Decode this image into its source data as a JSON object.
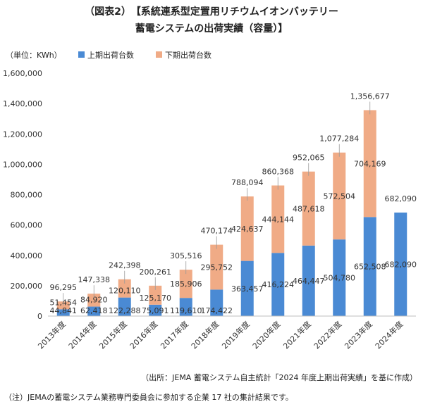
{
  "title": {
    "line1": "（図表2）　【系統連系型定置用リチウムイオンバッテリー",
    "line2": "蓄電システムの出荷実績（容量）】"
  },
  "footer": {
    "source": "（出所：JEMA 蓄電システム自主統計「2024 年度上期出荷実績」を基に作成）",
    "note": "（注）JEMAの蓄電システム業務専門委員会に参加する企業 17 社の集計結果です。"
  },
  "chart_data": {
    "type": "bar",
    "stacked": true,
    "unit_label": "（単位：KWh）",
    "categories": [
      "2013年度",
      "2014年度",
      "2015年度",
      "2016年度",
      "2017年度",
      "2018年度",
      "2019年度",
      "2020年度",
      "2021年度",
      "2022年度",
      "2023年度",
      "2024年度"
    ],
    "series": [
      {
        "name": "上期出荷台数",
        "color": "#4a8ad4",
        "values": [
          44841,
          62418,
          122288,
          75091,
          119610,
          174422,
          363457,
          416224,
          464447,
          504780,
          652508,
          682090
        ],
        "labels": [
          "44,841",
          "62,418",
          "122,288",
          "75,091",
          "119,610",
          "174,422",
          "363,457",
          "416,224",
          "464,447",
          "504,780",
          "652,508",
          "682,090"
        ]
      },
      {
        "name": "下期出荷台数",
        "color": "#f0ab86",
        "values": [
          51454,
          84920,
          120110,
          125170,
          185906,
          295752,
          424637,
          444144,
          487618,
          572504,
          704169,
          0
        ],
        "labels": [
          "51,454",
          "84,920",
          "120,110",
          "125,170",
          "185,906",
          "295,752",
          "424,637",
          "444,144",
          "487,618",
          "572,504",
          "704,169",
          ""
        ]
      }
    ],
    "totals": [
      96295,
      147338,
      242398,
      200261,
      305516,
      470174,
      788094,
      860368,
      952065,
      1077284,
      1356677,
      682090
    ],
    "total_labels": [
      "96,295",
      "147,338",
      "242,398",
      "200,261",
      "305,516",
      "470,174",
      "788,094",
      "860,368",
      "952,065",
      "1,077,284",
      "1,356,677",
      "682,090"
    ],
    "ylim": [
      0,
      1600000
    ],
    "yticks": [
      0,
      200000,
      400000,
      600000,
      800000,
      1000000,
      1200000,
      1400000,
      1600000
    ],
    "ytick_labels": [
      "0",
      "200,000",
      "400,000",
      "600,000",
      "800,000",
      "1,000,000",
      "1,200,000",
      "1,400,000",
      "1,600,000"
    ],
    "grid": false,
    "legend_position": "top"
  }
}
